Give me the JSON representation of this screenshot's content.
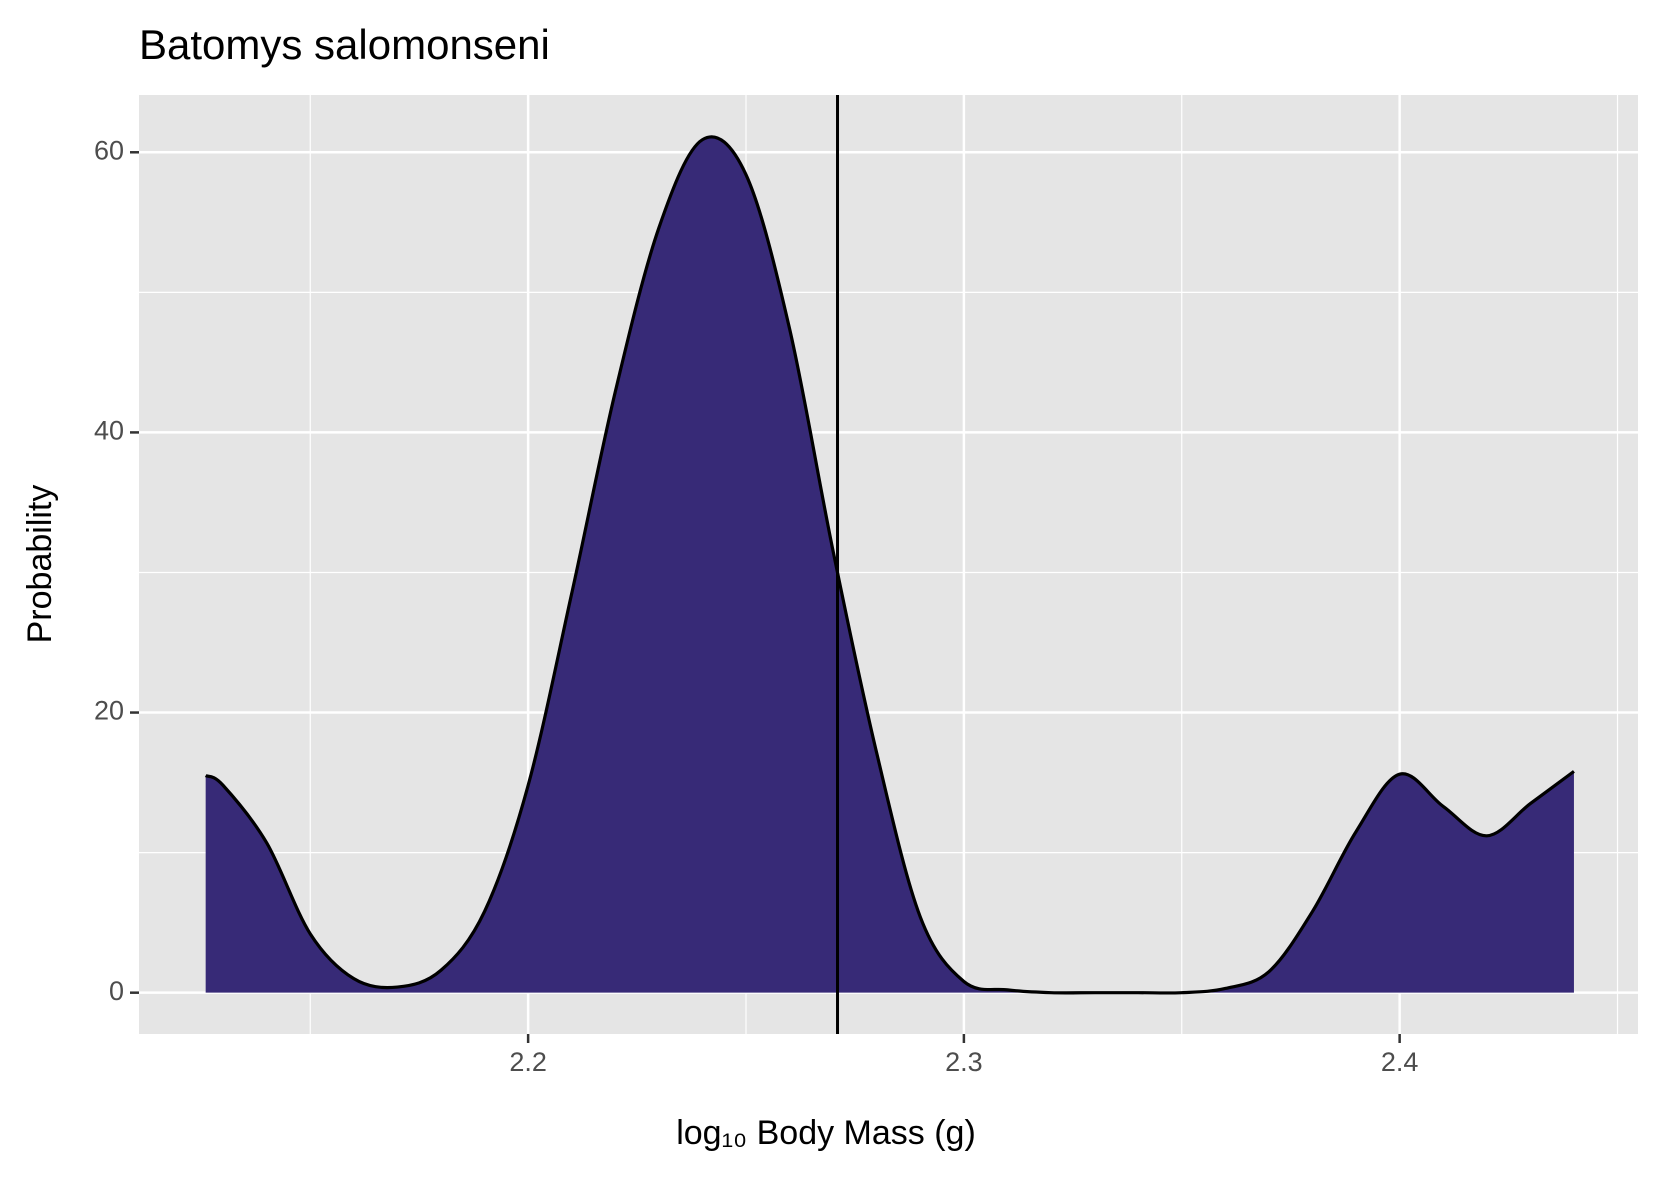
{
  "chart_data": {
    "type": "area",
    "title": "Batomys salomonseni",
    "x_label": "log₁₀ Body Mass (g)",
    "y_label": "Probability",
    "x": [
      2.126,
      2.13,
      2.14,
      2.15,
      2.16,
      2.17,
      2.18,
      2.19,
      2.2,
      2.21,
      2.22,
      2.23,
      2.24,
      2.25,
      2.26,
      2.27,
      2.28,
      2.29,
      2.3,
      2.31,
      2.32,
      2.33,
      2.34,
      2.35,
      2.36,
      2.37,
      2.38,
      2.39,
      2.4,
      2.41,
      2.42,
      2.43,
      2.44
    ],
    "values": [
      15.5,
      14.8,
      10.7,
      4.2,
      1.0,
      0.4,
      1.6,
      5.8,
      14.8,
      28.5,
      42.9,
      54.6,
      60.9,
      58.4,
      47.4,
      31.5,
      17.1,
      5.4,
      0.8,
      0.2,
      0,
      0,
      0,
      0,
      0.3,
      1.5,
      5.8,
      11.5,
      15.6,
      13.3,
      11.2,
      13.5,
      15.8
    ],
    "color": "#372a77",
    "vline": 2.271,
    "xlim": [
      2.1107,
      2.4547
    ],
    "ylim": [
      -2.95,
      64.09
    ],
    "xticks": [
      2.2,
      2.3,
      2.4
    ],
    "yticks": [
      0,
      20,
      40,
      60
    ],
    "grid": true
  }
}
